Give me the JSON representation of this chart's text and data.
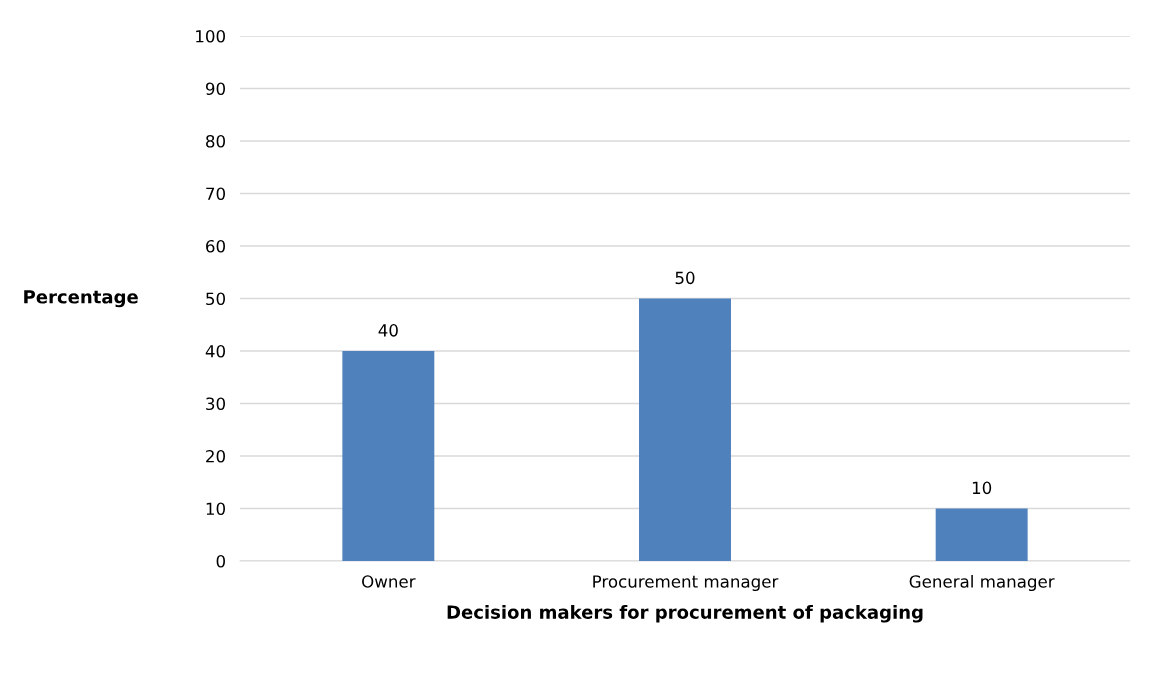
{
  "chart_data": {
    "type": "bar",
    "xlabel": "Decision makers for procurement of packaging",
    "ylabel": "Percentage",
    "categories": [
      "Owner",
      "Procurement manager",
      "General manager"
    ],
    "values": [
      40,
      50,
      10
    ],
    "color": "#4f81bd",
    "ylim": [
      0,
      100
    ],
    "yticks": [
      0,
      10,
      20,
      30,
      40,
      50,
      60,
      70,
      80,
      90,
      100
    ],
    "grid": "y",
    "data_labels": true
  }
}
